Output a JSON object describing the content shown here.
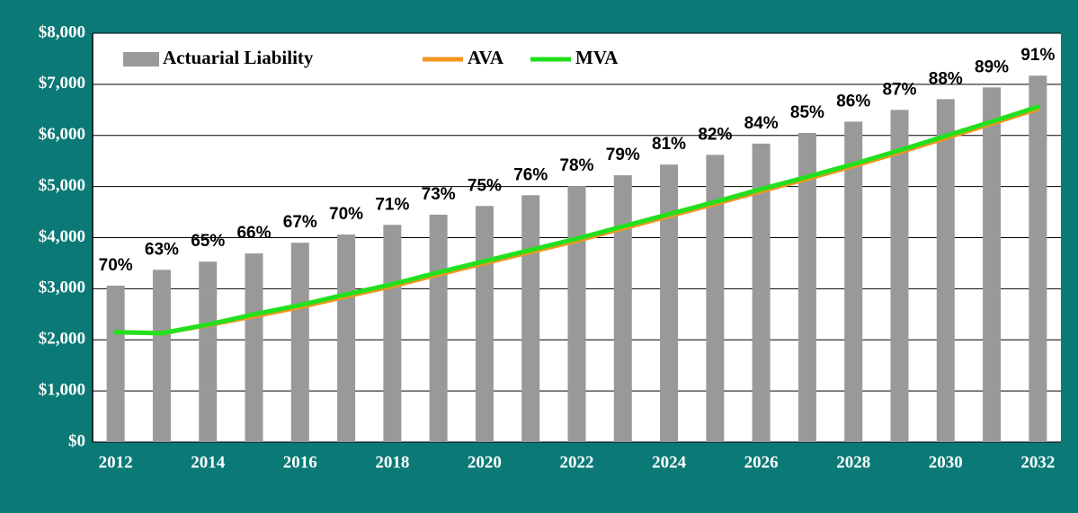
{
  "chart_data": {
    "type": "bar_line",
    "categories": [
      "2012",
      null,
      "2014",
      null,
      "2016",
      null,
      "2018",
      null,
      "2020",
      null,
      "2022",
      null,
      "2024",
      null,
      "2026",
      null,
      "2028",
      null,
      "2030",
      null,
      "2032"
    ],
    "series": [
      {
        "name": "Actuarial Liability",
        "type": "bar",
        "color": "#999999",
        "values": [
          3060,
          3370,
          3530,
          3690,
          3900,
          4060,
          4250,
          4450,
          4620,
          4830,
          5010,
          5220,
          5430,
          5620,
          5840,
          6050,
          6270,
          6500,
          6710,
          6940,
          7170
        ]
      },
      {
        "name": "AVA",
        "type": "line",
        "color": "#f0961e",
        "values": [
          2150,
          2130,
          2290,
          2460,
          2640,
          2850,
          3050,
          3280,
          3500,
          3720,
          3940,
          4180,
          4420,
          4660,
          4910,
          5150,
          5400,
          5670,
          5950,
          6230,
          6520
        ]
      },
      {
        "name": "MVA",
        "type": "line",
        "color": "#22e01e",
        "values": [
          2150,
          2130,
          2300,
          2500,
          2680,
          2890,
          3090,
          3320,
          3540,
          3760,
          3980,
          4220,
          4460,
          4700,
          4950,
          5190,
          5440,
          5710,
          5990,
          6270,
          6560
        ]
      }
    ],
    "annotations": [
      "70%",
      "63%",
      "65%",
      "66%",
      "67%",
      "70%",
      "71%",
      "73%",
      "75%",
      "76%",
      "78%",
      "79%",
      "81%",
      "82%",
      "84%",
      "85%",
      "86%",
      "87%",
      "88%",
      "89%",
      "91%"
    ],
    "ylim": [
      0,
      8000
    ],
    "yticks": [
      {
        "value": 0,
        "label": "$0"
      },
      {
        "value": 1000,
        "label": "$1,000"
      },
      {
        "value": 2000,
        "label": "$2,000"
      },
      {
        "value": 3000,
        "label": "$3,000"
      },
      {
        "value": 4000,
        "label": "$4,000"
      },
      {
        "value": 5000,
        "label": "$5,000"
      },
      {
        "value": 6000,
        "label": "$6,000"
      },
      {
        "value": 7000,
        "label": "$7,000"
      },
      {
        "value": 8000,
        "label": "$8,000"
      }
    ],
    "grid": true,
    "legend": "top-left"
  }
}
